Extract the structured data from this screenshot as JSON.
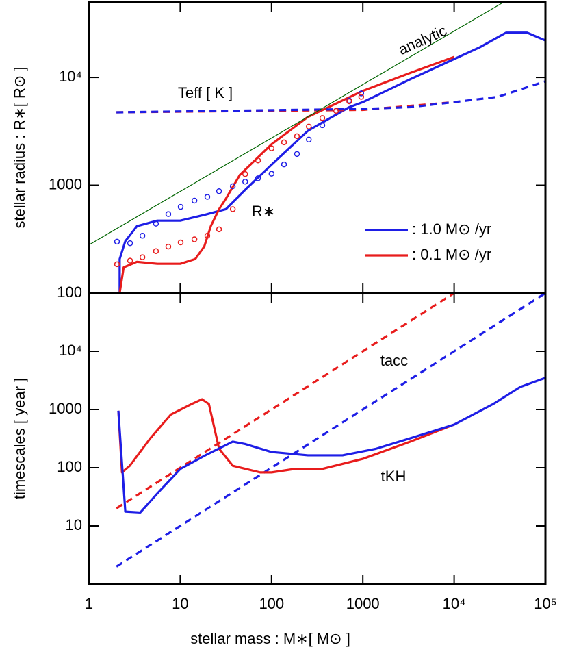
{
  "chart_data": [
    {
      "type": "line",
      "xlog": true,
      "ylog": true,
      "ylabel": "stellar radius :  R∗[ R⊙ ]",
      "xlim": [
        1,
        100000
      ],
      "ylim": [
        100,
        50000
      ],
      "yticks": [
        100,
        1000,
        {
          "value": 10000,
          "label": "10⁴"
        }
      ],
      "annotations": [
        "analytic",
        "Teff [ K ]",
        "R∗"
      ],
      "series": [
        {
          "name": ": 1.0 M⊙ /yr",
          "color": "#1e1ee6",
          "style": "solid",
          "x": [
            2.17,
            2.17,
            2.5,
            3.35,
            5.6,
            10,
            18.8,
            31.6,
            53,
            100,
            250,
            710,
            1000,
            3300,
            10000,
            19000,
            37000,
            63000,
            100000
          ],
          "values": [
            100,
            207,
            303,
            417,
            470,
            470,
            534,
            600,
            930,
            1550,
            3200,
            5300,
            5900,
            9600,
            14800,
            19000,
            26000,
            26000,
            22000
          ]
        },
        {
          "name": ": 0.1 M⊙ /yr",
          "color": "#e81c1c",
          "style": "solid",
          "x": [
            2.17,
            2.4,
            3.35,
            5.6,
            10,
            14.6,
            18.3,
            21.6,
            26.6,
            31.6,
            45,
            100,
            250,
            1000,
            3300,
            10000
          ],
          "values": [
            100,
            173,
            195,
            187,
            187,
            207,
            270,
            417,
            600,
            750,
            1250,
            2400,
            4300,
            7500,
            11000,
            15500
          ]
        },
        {
          "color": "#e81c1c",
          "style": "dashed",
          "x": [
            2,
            1000,
            10000
          ],
          "values": [
            4750,
            5000,
            5900
          ]
        },
        {
          "color": "#1e1ee6",
          "style": "dashed",
          "x": [
            2,
            1000,
            3300,
            10000,
            30000,
            100000
          ],
          "values": [
            4750,
            5100,
            5300,
            5900,
            6600,
            9200
          ]
        },
        {
          "color": "#1e1ee6",
          "style": "circles",
          "x": [
            2.03,
            2.82,
            3.85,
            5.42,
            7.4,
            10.1,
            14.3,
            19.8,
            26.6,
            37.6,
            51.4,
            71.1,
            100,
            137,
            190,
            256,
            360,
            510,
            710,
            960
          ],
          "values": [
            300,
            290,
            340,
            440,
            540,
            630,
            720,
            780,
            880,
            980,
            1080,
            1160,
            1280,
            1560,
            1950,
            2650,
            3600,
            4900,
            6100,
            7100
          ]
        },
        {
          "color": "#e81c1c",
          "style": "circles",
          "x": [
            2.03,
            2.82,
            3.85,
            5.42,
            7.4,
            10.1,
            14.3,
            19.8,
            26.6,
            37.6,
            51.4,
            71.1,
            100,
            137,
            190,
            256,
            360,
            510,
            710,
            960
          ],
          "values": [
            185,
            200,
            215,
            245,
            270,
            295,
            315,
            340,
            390,
            600,
            1270,
            1700,
            2200,
            2500,
            2850,
            3500,
            4200,
            4900,
            6000,
            6600
          ]
        },
        {
          "color": "#006400",
          "style": "thin",
          "x": [
            1,
            35000
          ],
          "values": [
            280,
            50000
          ]
        }
      ]
    },
    {
      "type": "line",
      "xlog": true,
      "ylog": true,
      "xlabel": "stellar mass : M∗[ M⊙ ]",
      "ylabel": "timescales [ year ]",
      "xlim": [
        1,
        100000
      ],
      "ylim": [
        1,
        100000
      ],
      "xticks": [
        1,
        10,
        100,
        1000,
        {
          "value": 10000,
          "label": "10⁴"
        },
        {
          "value": 100000,
          "label": "10⁵"
        }
      ],
      "yticks": [
        10,
        100,
        1000,
        {
          "value": 10000,
          "label": "10⁴"
        }
      ],
      "annotations": [
        "tacc",
        "tKH"
      ],
      "series": [
        {
          "color": "#e81c1c",
          "style": "dashed",
          "x": [
            2,
            10000
          ],
          "values": [
            20,
            100000
          ]
        },
        {
          "color": "#1e1ee6",
          "style": "dashed",
          "x": [
            2,
            100000
          ],
          "values": [
            2,
            100000
          ]
        },
        {
          "color": "#e81c1c",
          "style": "solid",
          "x": [
            2.1,
            2.3,
            2.8,
            4.7,
            7.9,
            13.3,
            17.3,
            20.6,
            26.6,
            37.6,
            75,
            100,
            178,
            356,
            1000,
            3300,
            10000
          ],
          "values": [
            950,
            83,
            108,
            320,
            820,
            1240,
            1500,
            1240,
            212,
            108,
            83,
            83,
            95,
            95,
            142,
            280,
            550
          ]
        },
        {
          "color": "#1e1ee6",
          "style": "solid",
          "x": [
            2.1,
            2.5,
            3.65,
            5.6,
            10,
            18.8,
            37.6,
            51.4,
            100,
            250,
            600,
            1400,
            3300,
            10000,
            27000,
            53000,
            100000
          ],
          "values": [
            950,
            17.6,
            17,
            36,
            95,
            163,
            280,
            255,
            186,
            163,
            163,
            212,
            320,
            550,
            1250,
            2440,
            3500
          ]
        }
      ]
    }
  ]
}
